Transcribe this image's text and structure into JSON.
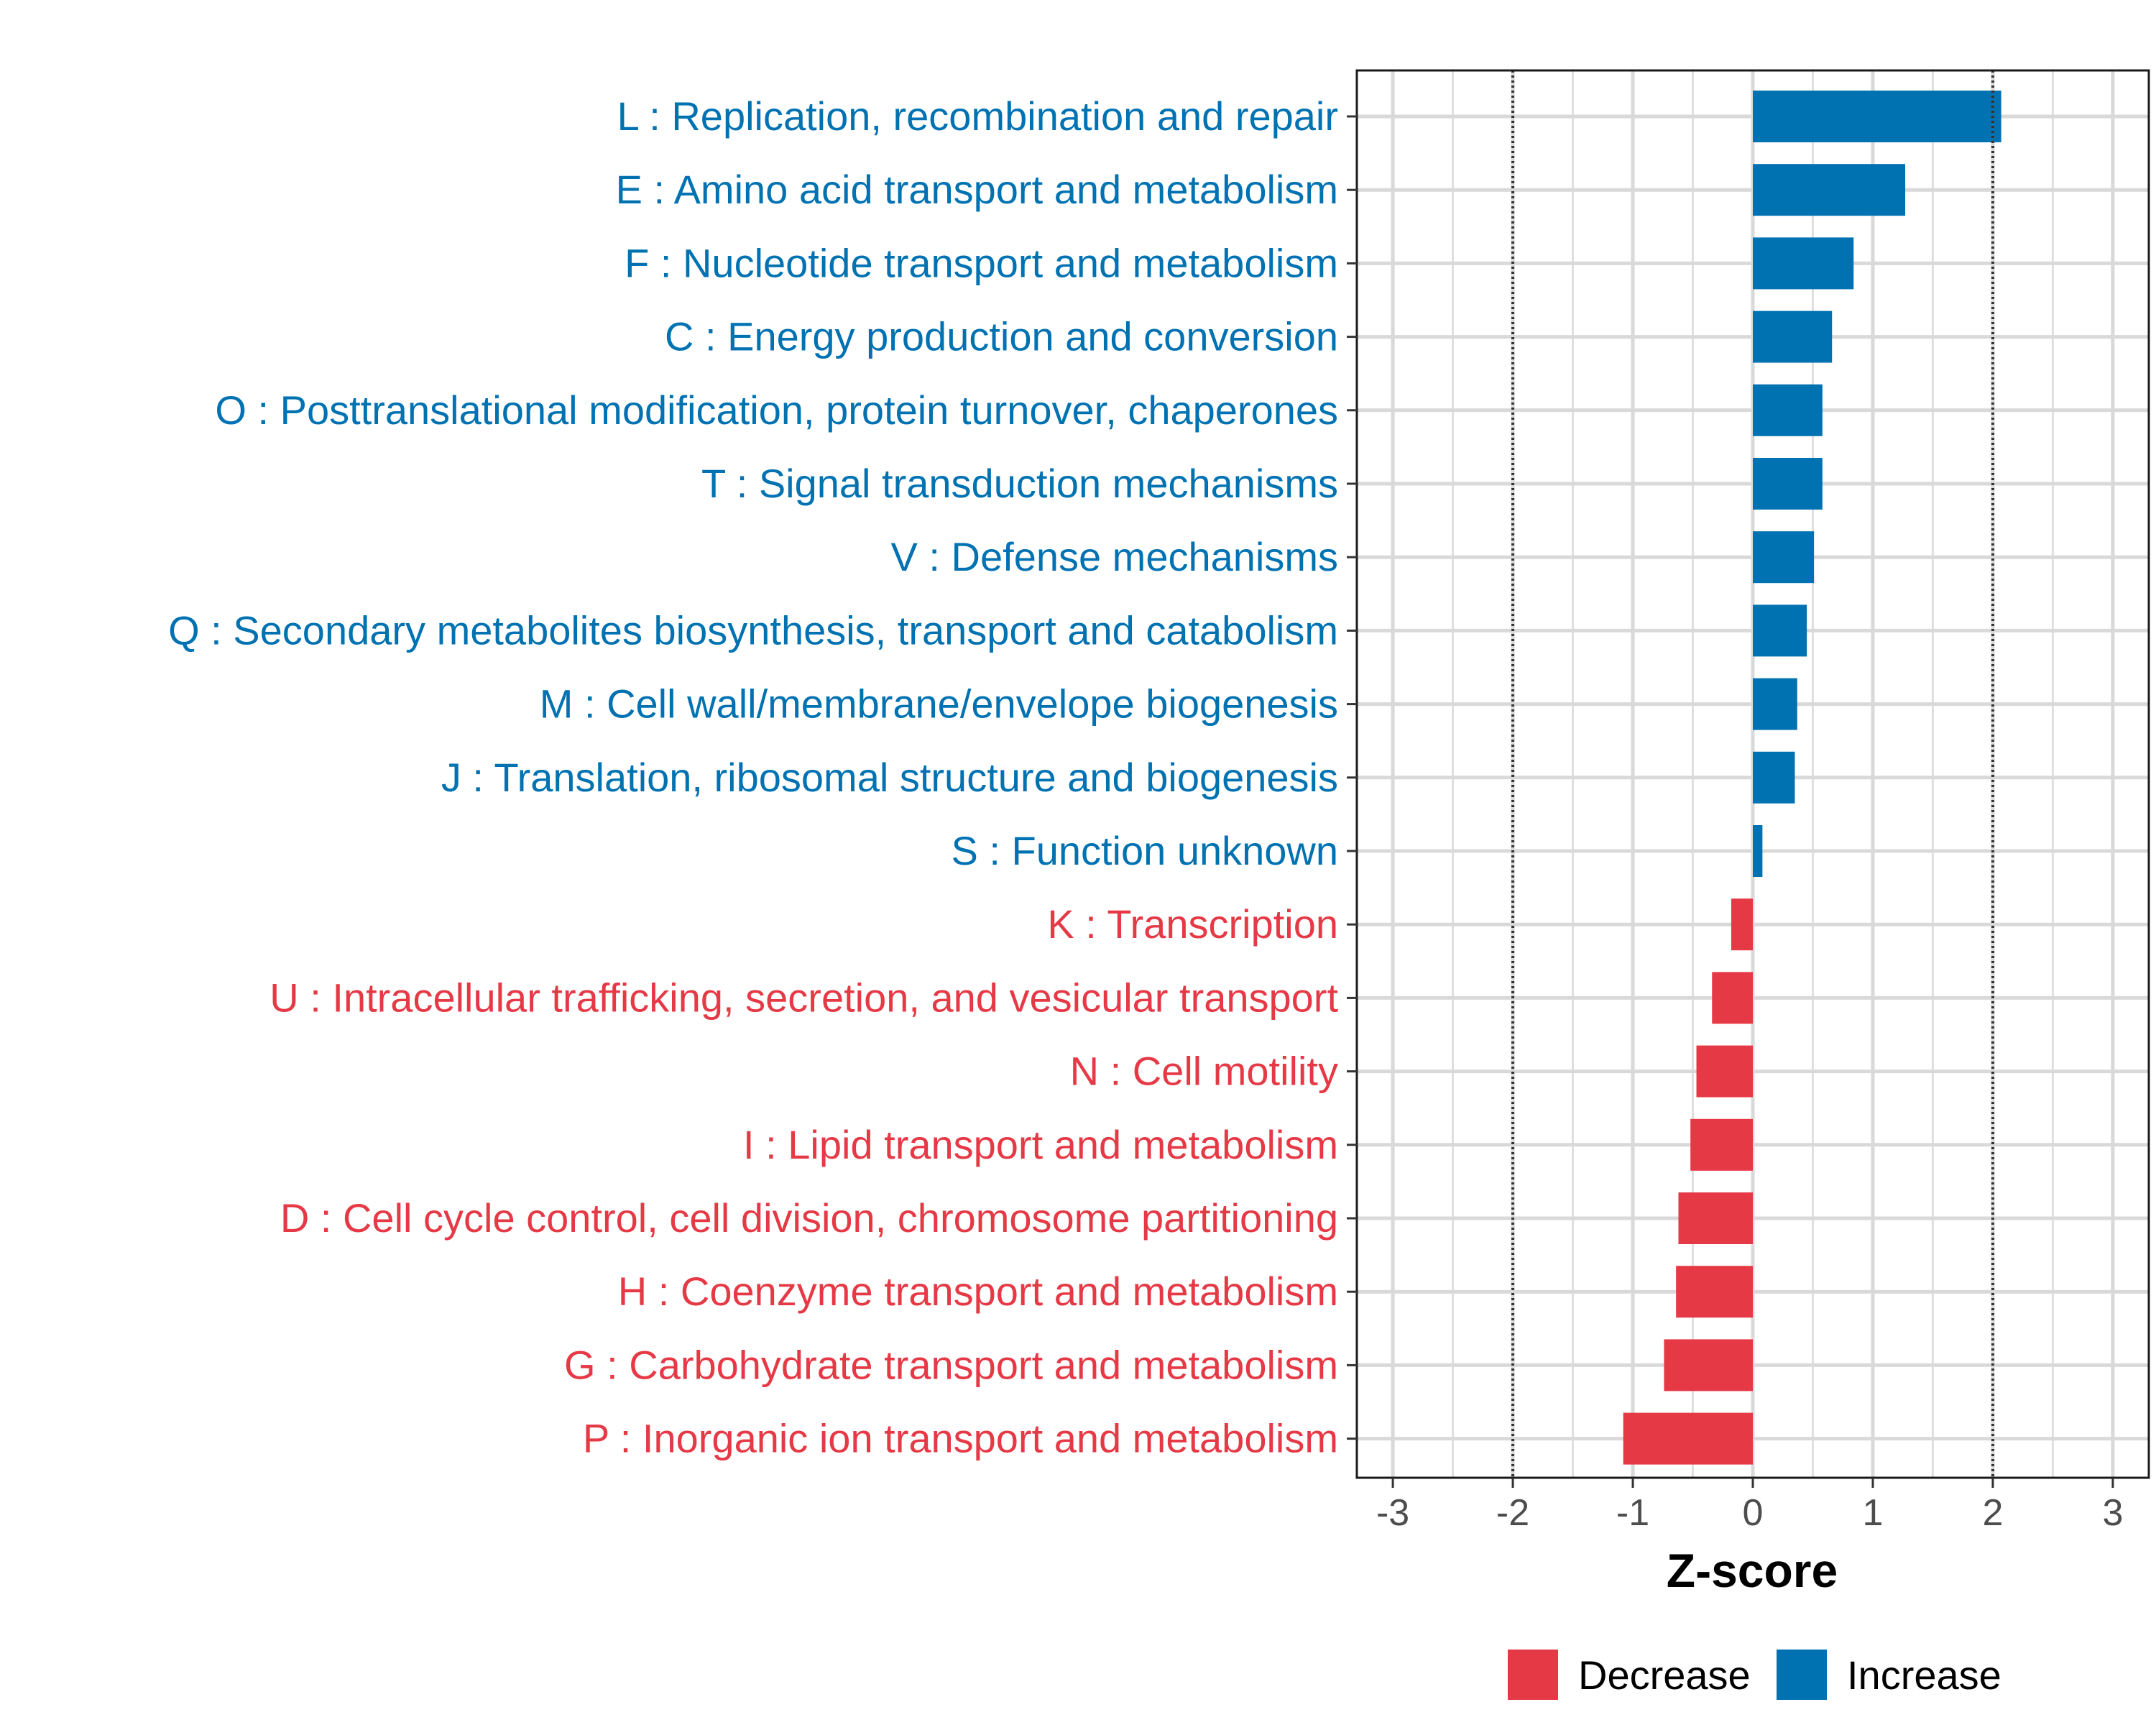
{
  "chart_data": {
    "type": "bar",
    "orientation": "horizontal",
    "xlabel": "Z-score",
    "ylabel": "",
    "xlim": [
      -3.3,
      3.3
    ],
    "x_ticks": [
      -3,
      -2,
      -1,
      0,
      1,
      2,
      3
    ],
    "x_tick_labels": [
      "-3",
      "-2",
      "-1",
      "0",
      "1",
      "2",
      "3"
    ],
    "threshold_lines": [
      -2,
      2
    ],
    "grid": true,
    "legend_position": "bottom",
    "colors": {
      "Decrease": "#e63946",
      "Increase": "#0072b2"
    },
    "categories": [
      "L : Replication, recombination and repair",
      "E : Amino acid transport and metabolism",
      "F : Nucleotide transport and metabolism",
      "C : Energy production and conversion",
      "O : Posttranslational modification, protein turnover, chaperones",
      "T : Signal transduction mechanisms",
      "V : Defense mechanisms",
      "Q : Secondary metabolites biosynthesis, transport and catabolism",
      "M : Cell wall/membrane/envelope biogenesis",
      "J : Translation, ribosomal structure and biogenesis",
      "S : Function unknown",
      "K : Transcription",
      "U : Intracellular trafficking, secretion, and vesicular transport",
      "N : Cell motility",
      "I : Lipid transport and metabolism",
      "D : Cell cycle control, cell division, chromosome partitioning",
      "H : Coenzyme transport and metabolism",
      "G : Carbohydrate transport and metabolism",
      "P : Inorganic ion transport and metabolism"
    ],
    "values": [
      2.07,
      1.27,
      0.84,
      0.66,
      0.58,
      0.58,
      0.51,
      0.45,
      0.37,
      0.35,
      0.08,
      -0.18,
      -0.34,
      -0.47,
      -0.52,
      -0.62,
      -0.64,
      -0.74,
      -1.08
    ],
    "groups": [
      "Increase",
      "Increase",
      "Increase",
      "Increase",
      "Increase",
      "Increase",
      "Increase",
      "Increase",
      "Increase",
      "Increase",
      "Increase",
      "Decrease",
      "Decrease",
      "Decrease",
      "Decrease",
      "Decrease",
      "Decrease",
      "Decrease",
      "Decrease"
    ],
    "legend": [
      "Decrease",
      "Increase"
    ]
  }
}
